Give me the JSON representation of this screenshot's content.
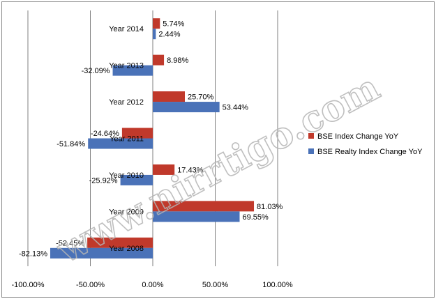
{
  "watermark": "www.nirrtigo.com",
  "colors": {
    "series1": "#c0392b",
    "series2": "#4a72b8",
    "grid": "#7f7f7f"
  },
  "chart_data": {
    "type": "bar",
    "orientation": "horizontal",
    "categories": [
      "Year 2014",
      "Year 2013",
      "Year 2012",
      "Year 2011",
      "Year 2010",
      "Year 2009",
      "Year 2008"
    ],
    "series": [
      {
        "name": "BSE Index Change YoY",
        "values": [
          5.74,
          8.98,
          25.7,
          -24.64,
          17.43,
          81.03,
          -52.45
        ],
        "labels": [
          "5.74%",
          "8.98%",
          "25.70%",
          "-24.64%",
          "17.43%",
          "81.03%",
          "-52.45%"
        ]
      },
      {
        "name": "BSE Realty Index Change YoY",
        "values": [
          2.44,
          -32.09,
          53.44,
          -51.84,
          -25.92,
          69.55,
          -82.13
        ],
        "labels": [
          "2.44%",
          "-32.09%",
          "53.44%",
          "-51.84%",
          "-25.92%",
          "69.55%",
          "-82.13%"
        ]
      }
    ],
    "xlim": [
      -100,
      100
    ],
    "xticks": [
      -100,
      -50,
      0,
      50,
      100
    ],
    "xtick_labels": [
      "-100.00%",
      "-50.00%",
      "0.00%",
      "50.00%",
      "100.00%"
    ],
    "grid": "vertical",
    "legend": "right"
  }
}
